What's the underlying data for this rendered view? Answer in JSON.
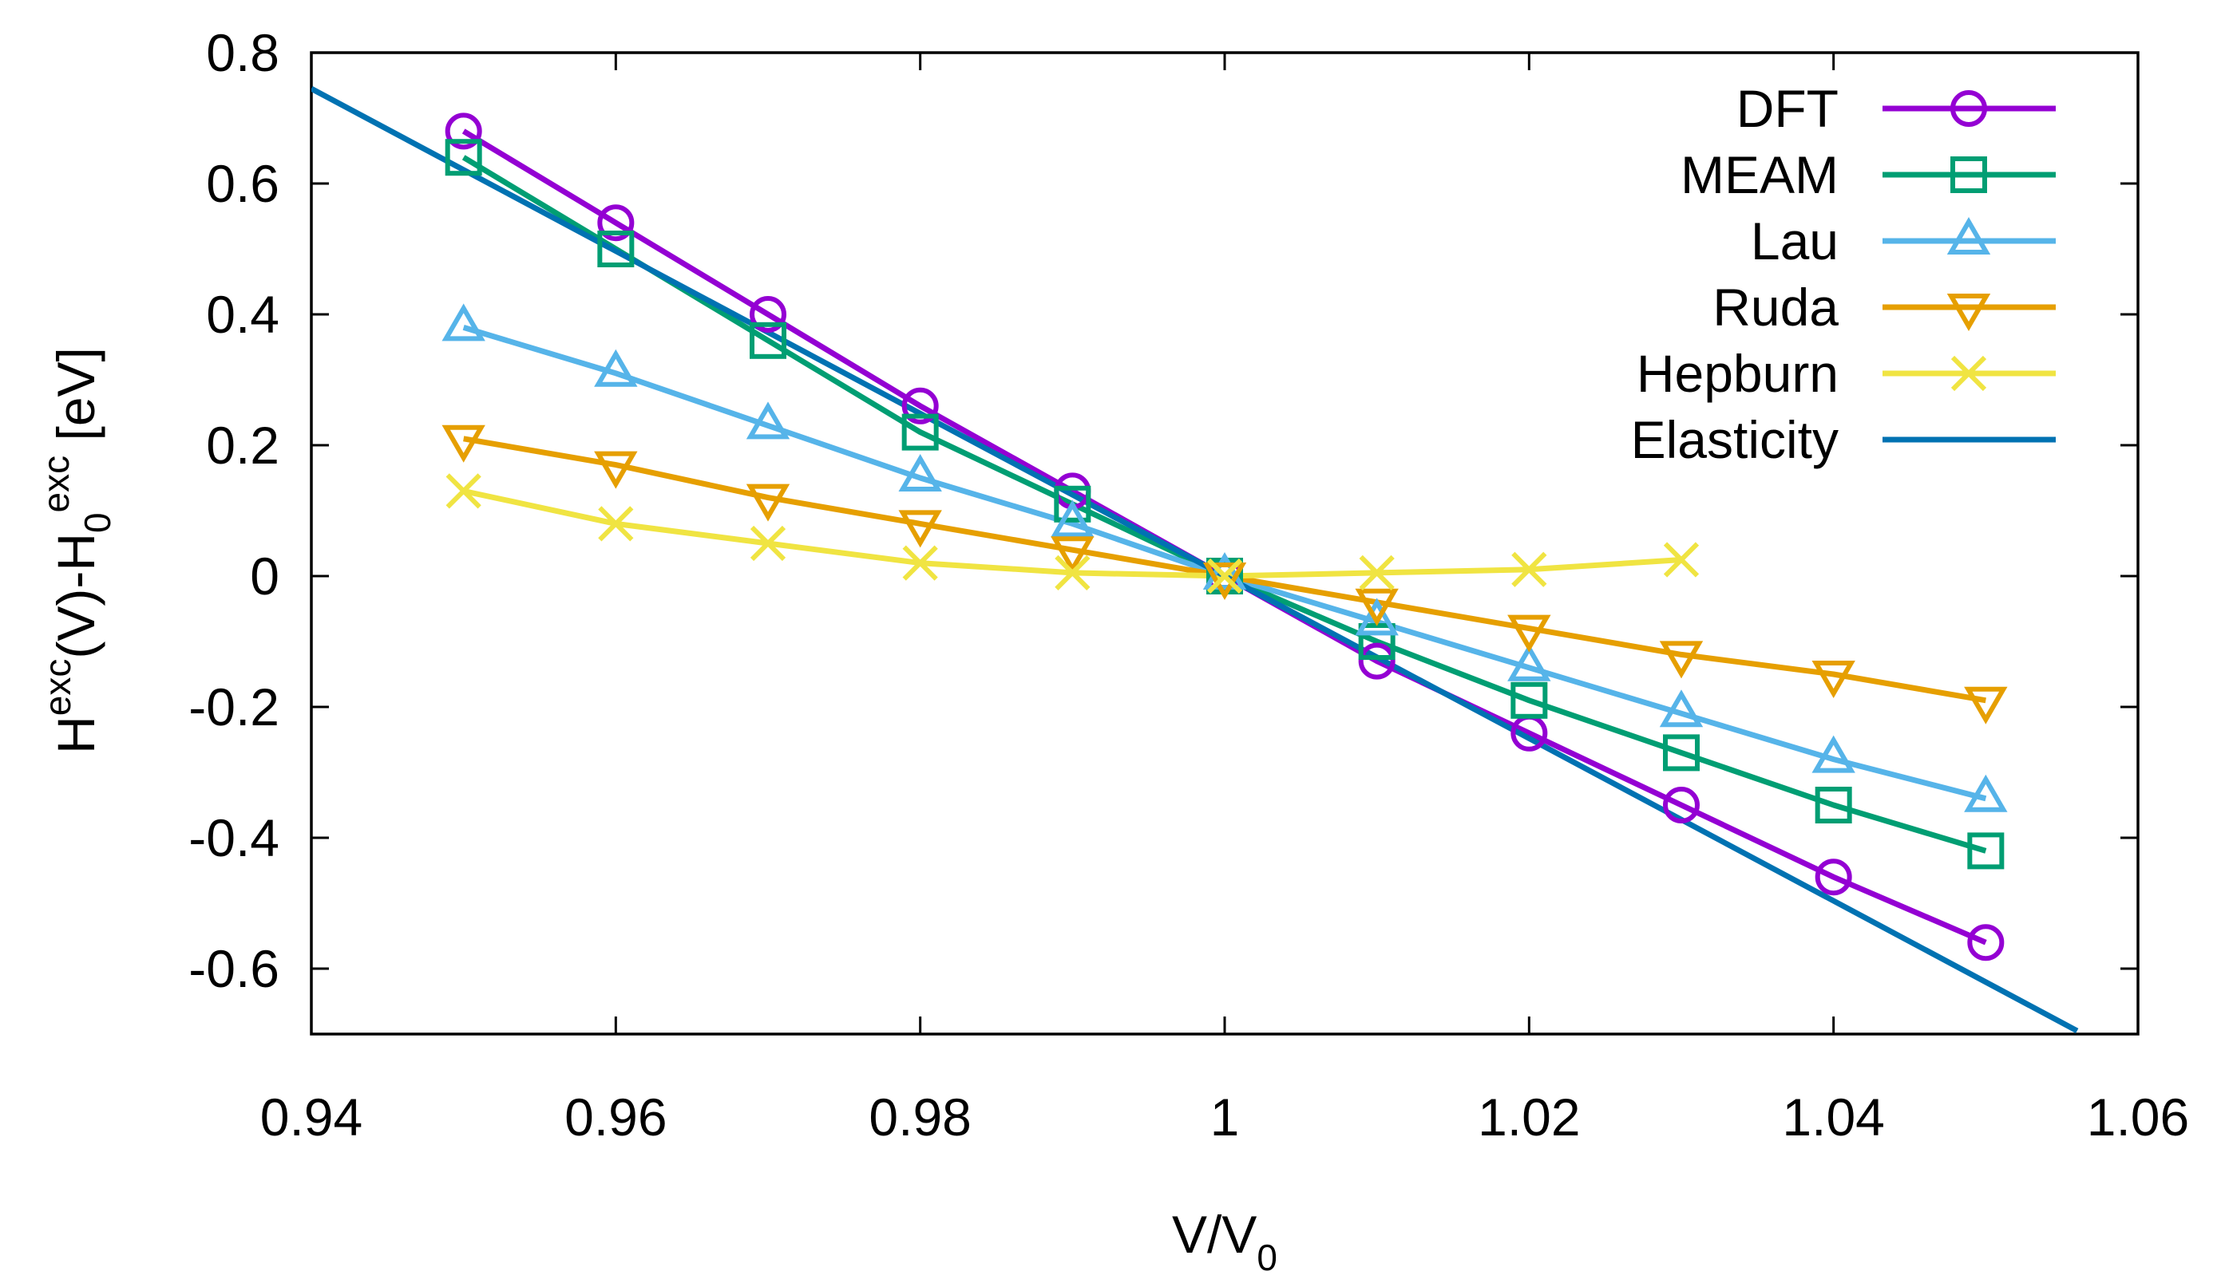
{
  "chart_data": {
    "type": "line",
    "xlabel": {
      "main": "V/V",
      "sub": "0"
    },
    "ylabel": {
      "p1": "H",
      "sup1": "exc",
      "p2": "(V)-H",
      "sub2": "0",
      "sup2": "exc",
      "p3": " [eV]"
    },
    "xlim": [
      0.94,
      1.06
    ],
    "ylim": [
      -0.7,
      0.8
    ],
    "x_ticks": [
      0.94,
      0.96,
      0.98,
      1.0,
      1.02,
      1.04,
      1.06
    ],
    "x_tick_labels": [
      "0.94",
      "0.96",
      "0.98",
      "1",
      "1.02",
      "1.04",
      "1.06"
    ],
    "y_ticks": [
      0.8,
      0.6,
      0.4,
      0.2,
      0,
      -0.2,
      -0.4,
      -0.6
    ],
    "y_tick_labels": [
      "0.8",
      "0.6",
      "0.4",
      "0.2",
      "0",
      "-0.2",
      "-0.4",
      "-0.6"
    ],
    "legend_position": "top-right",
    "series": [
      {
        "name": "DFT",
        "color": "#9400d3",
        "marker": "circle",
        "x": [
          0.95,
          0.96,
          0.97,
          0.98,
          0.99,
          1.0,
          1.01,
          1.02,
          1.03,
          1.04,
          1.05
        ],
        "y": [
          0.68,
          0.54,
          0.4,
          0.26,
          0.13,
          0.0,
          -0.13,
          -0.24,
          -0.35,
          -0.46,
          -0.56
        ]
      },
      {
        "name": "MEAM",
        "color": "#009e73",
        "marker": "square",
        "x": [
          0.95,
          0.96,
          0.97,
          0.98,
          0.99,
          1.0,
          1.01,
          1.02,
          1.03,
          1.04,
          1.05
        ],
        "y": [
          0.64,
          0.5,
          0.36,
          0.22,
          0.11,
          0.0,
          -0.1,
          -0.19,
          -0.27,
          -0.35,
          -0.42
        ]
      },
      {
        "name": "Lau",
        "color": "#56b4e9",
        "marker": "triangle-up",
        "x": [
          0.95,
          0.96,
          0.97,
          0.98,
          0.99,
          1.0,
          1.01,
          1.02,
          1.03,
          1.04,
          1.05
        ],
        "y": [
          0.38,
          0.31,
          0.23,
          0.15,
          0.08,
          0.0,
          -0.07,
          -0.14,
          -0.21,
          -0.28,
          -0.34
        ]
      },
      {
        "name": "Ruda",
        "color": "#e69f00",
        "marker": "triangle-down",
        "x": [
          0.95,
          0.96,
          0.97,
          0.98,
          0.99,
          1.0,
          1.01,
          1.02,
          1.03,
          1.04,
          1.05
        ],
        "y": [
          0.21,
          0.17,
          0.12,
          0.08,
          0.04,
          0.0,
          -0.04,
          -0.08,
          -0.12,
          -0.15,
          -0.19
        ]
      },
      {
        "name": "Hepburn",
        "color": "#f0e442",
        "marker": "x",
        "x": [
          0.95,
          0.96,
          0.97,
          0.98,
          0.99,
          1.0,
          1.01,
          1.02,
          1.03
        ],
        "y": [
          0.13,
          0.08,
          0.05,
          0.02,
          0.005,
          0.0,
          0.005,
          0.01,
          0.025
        ]
      },
      {
        "name": "Elasticity",
        "color": "#0072b2",
        "marker": "none",
        "x": [
          0.94,
          1.056
        ],
        "y": [
          0.745,
          -0.695
        ]
      }
    ]
  }
}
